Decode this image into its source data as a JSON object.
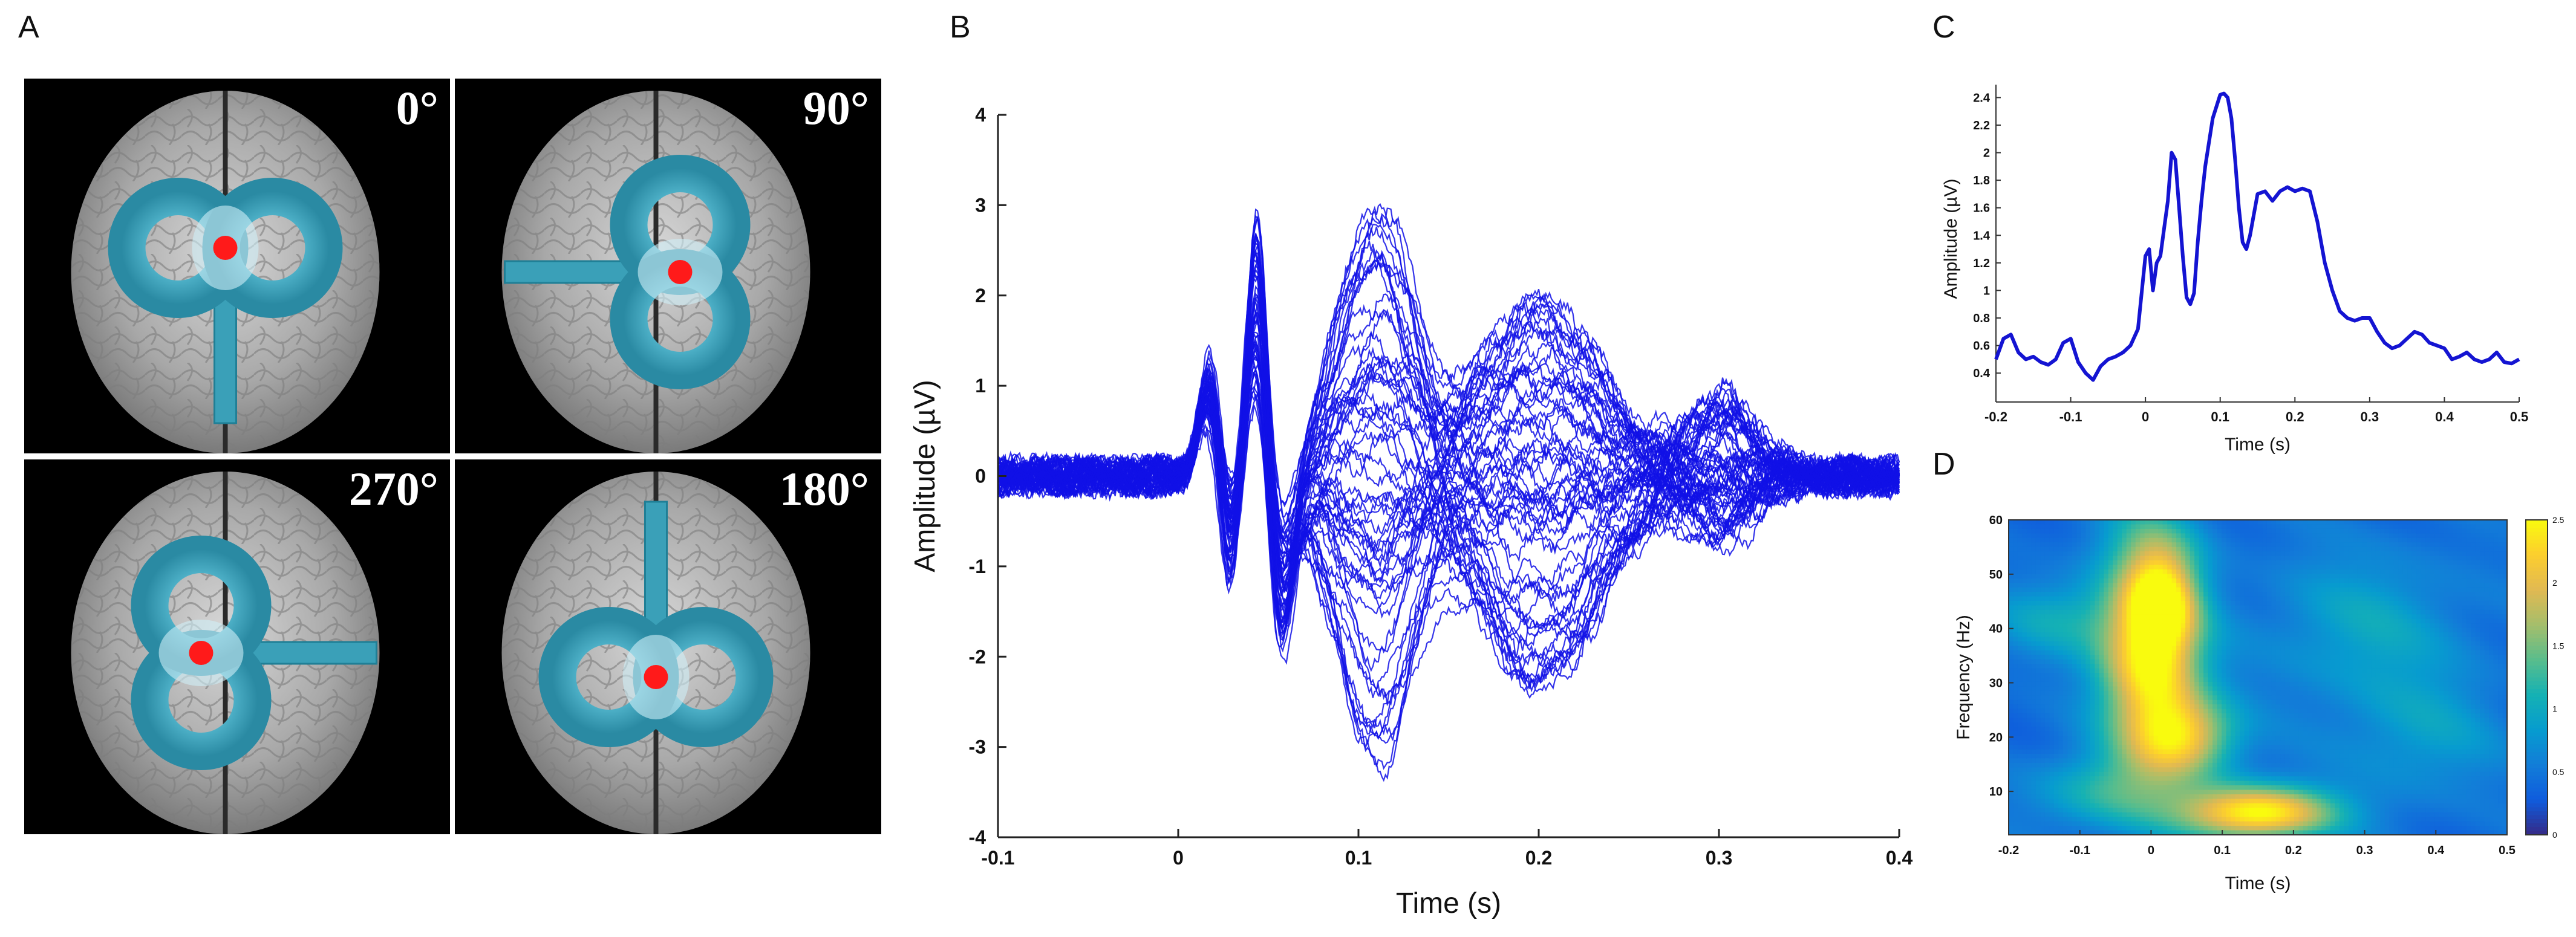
{
  "panels": {
    "a": "A",
    "b": "B",
    "c": "C",
    "d": "D"
  },
  "panel_a": {
    "angles": [
      "0°",
      "90°",
      "270°",
      "180°"
    ],
    "coil_orientation_deg": [
      0,
      90,
      270,
      180
    ],
    "colors": {
      "background": "#000000",
      "coil": "#3aa0b8",
      "coil_edge": "#1f7f96",
      "target": "#ff1a1a",
      "brain": "#a9a9a9"
    }
  },
  "chart_data": [
    {
      "panel": "B",
      "type": "line",
      "xlabel": "Time (s)",
      "ylabel": "Amplitude (µV)",
      "xlim": [
        -0.1,
        0.4
      ],
      "ylim": [
        -4,
        4
      ],
      "xticks": [
        "-0.1",
        "0",
        "0.1",
        "0.2",
        "0.3",
        "0.4"
      ],
      "yticks": [
        "4",
        "3",
        "2",
        "1",
        "0",
        "-1",
        "-2",
        "-3",
        "-4"
      ],
      "color": "#1010e6",
      "n_traces": 60,
      "components": [
        {
          "t": 0.018,
          "amp_min": 0.8,
          "amp_max": 1.5,
          "width": 0.006
        },
        {
          "t": 0.028,
          "amp_min": -1.6,
          "amp_max": -0.4,
          "width": 0.006
        },
        {
          "t": 0.044,
          "amp_min": 1.3,
          "amp_max": 3.3,
          "width": 0.006
        },
        {
          "t": 0.056,
          "amp_min": -2.2,
          "amp_max": -0.6,
          "width": 0.008
        },
        {
          "t": 0.11,
          "amp_min": -3.2,
          "amp_max": 3.1,
          "width": 0.022
        },
        {
          "t": 0.2,
          "amp_min": -2.4,
          "amp_max": 2.1,
          "width": 0.035
        },
        {
          "t": 0.3,
          "amp_min": -0.8,
          "amp_max": 0.9,
          "width": 0.02
        }
      ]
    },
    {
      "panel": "C",
      "type": "line",
      "xlabel": "Time (s)",
      "ylabel": "Amplitude (µV)",
      "xlim": [
        -0.2,
        0.5
      ],
      "ylim": [
        0.3,
        2.45
      ],
      "xticks": [
        "-0.2",
        "-0.1",
        "0",
        "0.1",
        "0.2",
        "0.3",
        "0.4",
        "0.5"
      ],
      "yticks": [
        "2.4",
        "2.2",
        "2",
        "1.8",
        "1.6",
        "1.4",
        "1.2",
        "1",
        "0.8",
        "0.6",
        "0.4"
      ],
      "color": "#1414d2",
      "x": [
        -0.2,
        -0.19,
        -0.18,
        -0.17,
        -0.16,
        -0.15,
        -0.14,
        -0.13,
        -0.12,
        -0.11,
        -0.1,
        -0.09,
        -0.08,
        -0.07,
        -0.06,
        -0.05,
        -0.04,
        -0.03,
        -0.02,
        -0.01,
        0.0,
        0.005,
        0.01,
        0.015,
        0.02,
        0.025,
        0.03,
        0.035,
        0.04,
        0.045,
        0.05,
        0.055,
        0.06,
        0.065,
        0.07,
        0.075,
        0.08,
        0.09,
        0.1,
        0.105,
        0.11,
        0.115,
        0.12,
        0.125,
        0.13,
        0.135,
        0.14,
        0.15,
        0.16,
        0.17,
        0.18,
        0.19,
        0.2,
        0.21,
        0.22,
        0.23,
        0.24,
        0.25,
        0.26,
        0.27,
        0.28,
        0.29,
        0.3,
        0.31,
        0.32,
        0.33,
        0.34,
        0.35,
        0.36,
        0.37,
        0.38,
        0.39,
        0.4,
        0.41,
        0.42,
        0.43,
        0.44,
        0.45,
        0.46,
        0.47,
        0.48,
        0.49,
        0.5
      ],
      "y": [
        0.5,
        0.65,
        0.68,
        0.55,
        0.5,
        0.52,
        0.48,
        0.46,
        0.5,
        0.62,
        0.65,
        0.48,
        0.4,
        0.35,
        0.45,
        0.5,
        0.52,
        0.55,
        0.6,
        0.72,
        1.25,
        1.3,
        1.0,
        1.2,
        1.25,
        1.45,
        1.65,
        2.0,
        1.95,
        1.6,
        1.25,
        0.95,
        0.9,
        0.98,
        1.35,
        1.65,
        1.9,
        2.25,
        2.42,
        2.43,
        2.4,
        2.25,
        1.95,
        1.6,
        1.35,
        1.3,
        1.4,
        1.7,
        1.72,
        1.65,
        1.72,
        1.75,
        1.72,
        1.74,
        1.72,
        1.5,
        1.2,
        1.0,
        0.85,
        0.8,
        0.78,
        0.8,
        0.8,
        0.7,
        0.62,
        0.58,
        0.6,
        0.65,
        0.7,
        0.68,
        0.62,
        0.6,
        0.58,
        0.5,
        0.52,
        0.55,
        0.5,
        0.48,
        0.5,
        0.55,
        0.48,
        0.47,
        0.5
      ]
    },
    {
      "panel": "D",
      "type": "heatmap",
      "xlabel": "Time (s)",
      "ylabel": "Frequency (Hz)",
      "xlim": [
        -0.2,
        0.5
      ],
      "ylim": [
        2,
        60
      ],
      "xticks": [
        "-0.2",
        "-0.1",
        "0",
        "0.1",
        "0.2",
        "0.3",
        "0.4",
        "0.5"
      ],
      "yticks": [
        "60",
        "50",
        "40",
        "30",
        "20",
        "10"
      ],
      "colorbar": {
        "min": 0,
        "max": 2.5,
        "ticks": [
          "2.5",
          "2",
          "1.5",
          "1",
          "0.5",
          "0"
        ]
      },
      "colormap": "parula",
      "hotspots": [
        {
          "t": 0.0,
          "f": 33,
          "value": 2.45,
          "t_spread": 0.05,
          "f_spread": 11
        },
        {
          "t": 0.015,
          "f": 45,
          "value": 1.6,
          "t_spread": 0.035,
          "f_spread": 6
        },
        {
          "t": 0.05,
          "f": 20,
          "value": 1.6,
          "t_spread": 0.05,
          "f_spread": 5
        },
        {
          "t": 0.15,
          "f": 6,
          "value": 2.5,
          "t_spread": 0.075,
          "f_spread": 3.5
        },
        {
          "t": 0.0,
          "f": 55,
          "value": 0.9,
          "t_spread": 0.05,
          "f_spread": 6
        },
        {
          "t": -0.12,
          "f": 42,
          "value": 0.7,
          "t_spread": 0.07,
          "f_spread": 5
        },
        {
          "t": 0.3,
          "f": 40,
          "value": 0.6,
          "t_spread": 0.1,
          "f_spread": 10
        },
        {
          "t": 0.38,
          "f": 20,
          "value": 0.5,
          "t_spread": 0.08,
          "f_spread": 8
        },
        {
          "t": -0.05,
          "f": 10,
          "value": 0.9,
          "t_spread": 0.08,
          "f_spread": 5
        }
      ],
      "baseline": 0.42
    }
  ]
}
